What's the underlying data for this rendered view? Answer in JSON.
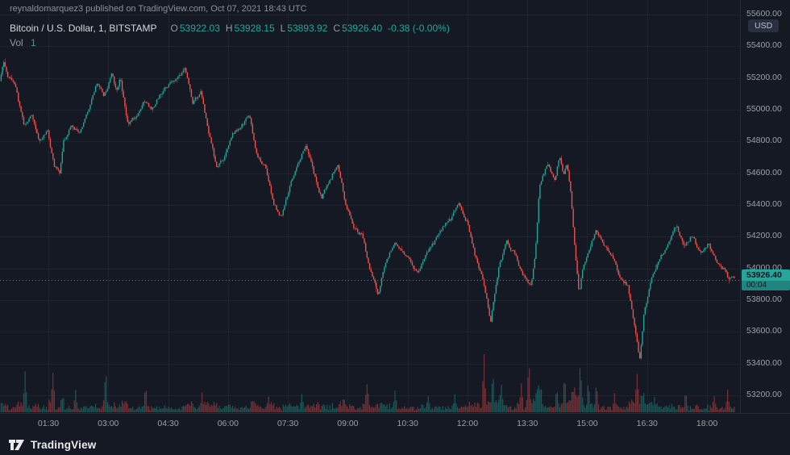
{
  "header": {
    "publish_line": "reynaldomarquez3 published on TradingView.com, Oct 07, 2021 18:43 UTC"
  },
  "legend": {
    "symbol": "Bitcoin / U.S. Dollar, 1, BITSTAMP",
    "ohlc": {
      "o_label": "O",
      "o_value": "53922.03",
      "h_label": "H",
      "h_value": "53928.15",
      "l_label": "L",
      "l_value": "53893.92",
      "c_label": "C",
      "c_value": "53926.40",
      "change": "-0.38 (-0.00%)"
    },
    "volume": {
      "label": "Vol",
      "value": "1"
    }
  },
  "price_axis": {
    "currency": "USD",
    "last_price_label": "53926.40",
    "countdown": "00:04"
  },
  "footer": {
    "brand": "TradingView"
  },
  "colors": {
    "background": "#141923",
    "up": "#26a69a",
    "down": "#ef5350",
    "grid": "rgba(151,164,190,0.07)",
    "axis_text": "#9ba1ab",
    "last_label_bg": "#26a69a",
    "last_label_text": "#0e141f"
  },
  "chart_data": {
    "type": "candlestick",
    "title": "Bitcoin / U.S. Dollar",
    "exchange": "BITSTAMP",
    "interval": "1",
    "unit": "USD",
    "session_start": "00:18 UTC",
    "session_end": "18:43 UTC",
    "last": {
      "open": 53922.03,
      "high": 53928.15,
      "low": 53893.92,
      "close": 53926.4,
      "change": -0.38,
      "change_pct": 0.0
    },
    "last_price": 53926.4,
    "visible_price_range": [
      53100,
      55650
    ],
    "grid": true,
    "legend_position": "top-left",
    "start_minute": 18,
    "end_minute": 1123,
    "candle_minutes": 1,
    "price_ticks": [
      {
        "label": "55600.00",
        "value": 55600
      },
      {
        "label": "55400.00",
        "value": 55400
      },
      {
        "label": "55200.00",
        "value": 55200
      },
      {
        "label": "55000.00",
        "value": 55000
      },
      {
        "label": "54800.00",
        "value": 54800
      },
      {
        "label": "54600.00",
        "value": 54600
      },
      {
        "label": "54400.00",
        "value": 54400
      },
      {
        "label": "54200.00",
        "value": 54200
      },
      {
        "label": "54000.00",
        "value": 54000
      },
      {
        "label": "53800.00",
        "value": 53800
      },
      {
        "label": "53600.00",
        "value": 53600
      },
      {
        "label": "53400.00",
        "value": 53400
      },
      {
        "label": "53200.00",
        "value": 53200
      }
    ],
    "time_ticks": [
      {
        "label": "01:30",
        "minutes": 90
      },
      {
        "label": "03:00",
        "minutes": 180
      },
      {
        "label": "04:30",
        "minutes": 270
      },
      {
        "label": "06:00",
        "minutes": 360
      },
      {
        "label": "07:30",
        "minutes": 450
      },
      {
        "label": "09:00",
        "minutes": 540
      },
      {
        "label": "10:30",
        "minutes": 630
      },
      {
        "label": "12:00",
        "minutes": 720
      },
      {
        "label": "13:30",
        "minutes": 810
      },
      {
        "label": "15:00",
        "minutes": 900
      },
      {
        "label": "16:30",
        "minutes": 990
      },
      {
        "label": "18:00",
        "minutes": 1080
      }
    ],
    "price_path": [
      [
        18,
        55180
      ],
      [
        23,
        55310
      ],
      [
        30,
        55210
      ],
      [
        41,
        55150
      ],
      [
        54,
        54900
      ],
      [
        66,
        54960
      ],
      [
        78,
        54800
      ],
      [
        90,
        54860
      ],
      [
        100,
        54640
      ],
      [
        108,
        54600
      ],
      [
        114,
        54800
      ],
      [
        126,
        54910
      ],
      [
        138,
        54850
      ],
      [
        151,
        55000
      ],
      [
        163,
        55160
      ],
      [
        175,
        55090
      ],
      [
        187,
        55230
      ],
      [
        193,
        55120
      ],
      [
        199,
        55200
      ],
      [
        211,
        54900
      ],
      [
        223,
        54960
      ],
      [
        235,
        55060
      ],
      [
        247,
        55000
      ],
      [
        260,
        55110
      ],
      [
        272,
        55160
      ],
      [
        284,
        55200
      ],
      [
        296,
        55260
      ],
      [
        308,
        55040
      ],
      [
        320,
        55110
      ],
      [
        332,
        54850
      ],
      [
        344,
        54640
      ],
      [
        357,
        54710
      ],
      [
        369,
        54850
      ],
      [
        381,
        54900
      ],
      [
        393,
        54960
      ],
      [
        405,
        54700
      ],
      [
        417,
        54650
      ],
      [
        429,
        54410
      ],
      [
        441,
        54330
      ],
      [
        453,
        54500
      ],
      [
        466,
        54660
      ],
      [
        478,
        54770
      ],
      [
        490,
        54600
      ],
      [
        502,
        54440
      ],
      [
        514,
        54560
      ],
      [
        526,
        54660
      ],
      [
        538,
        54400
      ],
      [
        550,
        54260
      ],
      [
        562,
        54210
      ],
      [
        575,
        53990
      ],
      [
        587,
        53840
      ],
      [
        599,
        54060
      ],
      [
        611,
        54160
      ],
      [
        623,
        54100
      ],
      [
        635,
        54050
      ],
      [
        647,
        53960
      ],
      [
        659,
        54110
      ],
      [
        671,
        54160
      ],
      [
        684,
        54260
      ],
      [
        696,
        54310
      ],
      [
        708,
        54420
      ],
      [
        720,
        54300
      ],
      [
        732,
        54090
      ],
      [
        744,
        53940
      ],
      [
        756,
        53670
      ],
      [
        768,
        54010
      ],
      [
        780,
        54160
      ],
      [
        793,
        54090
      ],
      [
        805,
        53950
      ],
      [
        817,
        53890
      ],
      [
        823,
        54100
      ],
      [
        829,
        54510
      ],
      [
        841,
        54660
      ],
      [
        853,
        54550
      ],
      [
        859,
        54700
      ],
      [
        865,
        54590
      ],
      [
        871,
        54660
      ],
      [
        877,
        54440
      ],
      [
        883,
        54080
      ],
      [
        889,
        53830
      ],
      [
        895,
        54010
      ],
      [
        902,
        54110
      ],
      [
        914,
        54230
      ],
      [
        926,
        54140
      ],
      [
        938,
        54090
      ],
      [
        950,
        53950
      ],
      [
        962,
        53890
      ],
      [
        974,
        53580
      ],
      [
        980,
        53430
      ],
      [
        986,
        53700
      ],
      [
        998,
        53950
      ],
      [
        1010,
        54060
      ],
      [
        1023,
        54160
      ],
      [
        1035,
        54270
      ],
      [
        1047,
        54150
      ],
      [
        1059,
        54210
      ],
      [
        1071,
        54090
      ],
      [
        1083,
        54160
      ],
      [
        1095,
        54040
      ],
      [
        1107,
        53990
      ],
      [
        1113,
        53940
      ],
      [
        1123,
        53926
      ]
    ],
    "volume_spikes": [
      [
        54,
        0.8
      ],
      [
        96,
        0.85
      ],
      [
        130,
        0.4
      ],
      [
        175,
        0.8
      ],
      [
        235,
        0.5
      ],
      [
        320,
        0.3
      ],
      [
        420,
        0.3
      ],
      [
        470,
        0.35
      ],
      [
        568,
        0.6
      ],
      [
        610,
        0.4
      ],
      [
        660,
        0.3
      ],
      [
        700,
        0.35
      ],
      [
        744,
        0.95
      ],
      [
        757,
        0.7
      ],
      [
        770,
        0.55
      ],
      [
        800,
        0.5
      ],
      [
        811,
        0.9
      ],
      [
        829,
        0.6
      ],
      [
        853,
        0.45
      ],
      [
        865,
        0.65
      ],
      [
        880,
        0.5
      ],
      [
        889,
        0.9
      ],
      [
        901,
        0.6
      ],
      [
        913,
        0.5
      ],
      [
        940,
        0.35
      ],
      [
        974,
        0.75
      ],
      [
        1000,
        0.3
      ],
      [
        1047,
        0.4
      ],
      [
        1090,
        0.35
      ],
      [
        1110,
        0.4
      ]
    ]
  }
}
